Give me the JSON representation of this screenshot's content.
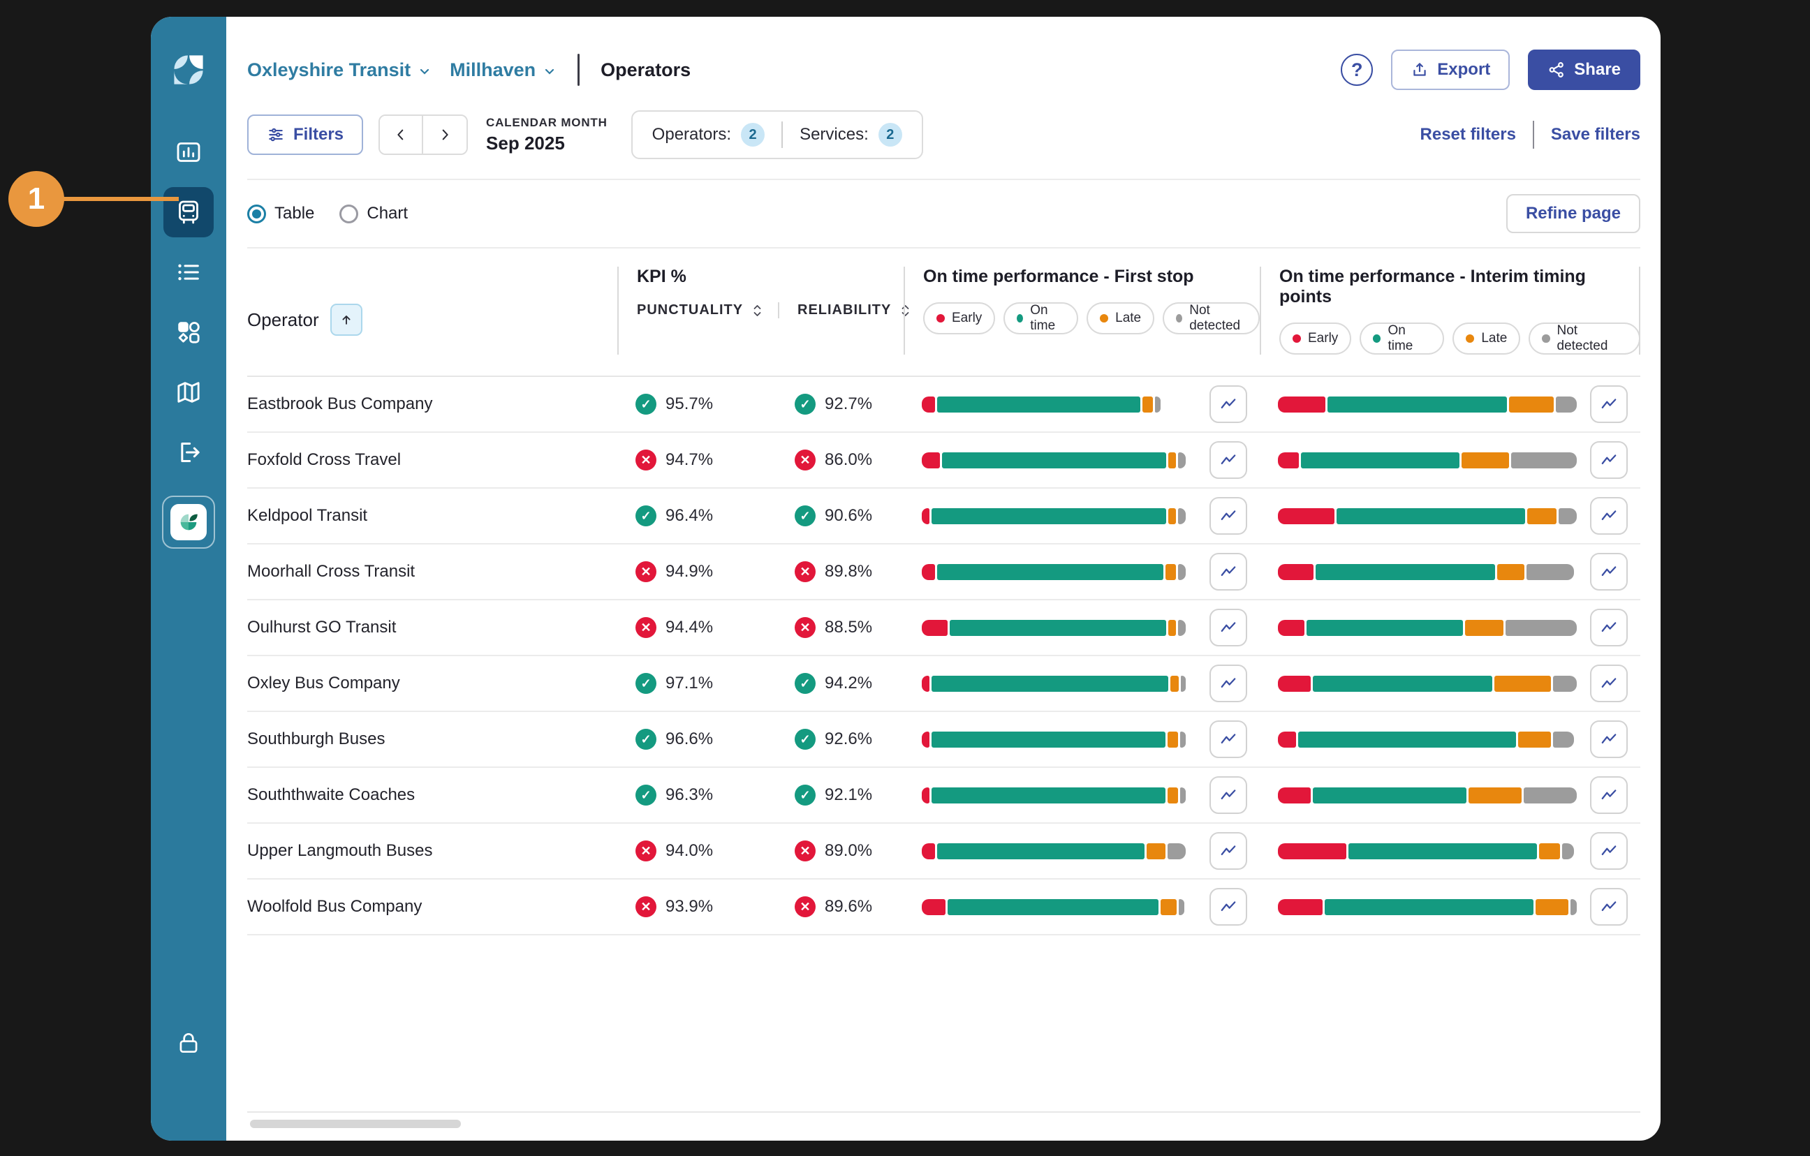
{
  "callout": {
    "number": "1"
  },
  "sidebar": {
    "icons": [
      "logo",
      "bar-chart",
      "bus",
      "list",
      "shapes",
      "map",
      "logout",
      "app-badge",
      "lock"
    ],
    "active_icon": "bus",
    "color": "#2b7a9d"
  },
  "header": {
    "breadcrumb": {
      "org": "Oxleyshire Transit",
      "region": "Millhaven"
    },
    "page_title": "Operators",
    "export_label": "Export",
    "share_label": "Share"
  },
  "filter_bar": {
    "filters_label": "Filters",
    "calendar_month_label": "CALENDAR MONTH",
    "calendar_month_value": "Sep 2025",
    "operators_label": "Operators:",
    "operators_count": "2",
    "services_label": "Services:",
    "services_count": "2",
    "reset_label": "Reset filters",
    "save_label": "Save filters"
  },
  "view_toggle": {
    "table_label": "Table",
    "chart_label": "Chart",
    "selected": "Table",
    "refine_label": "Refine page"
  },
  "table": {
    "operator_header": "Operator",
    "kpi_header": "KPI %",
    "punctuality_header": "PUNCTUALITY",
    "reliability_header": "RELIABILITY",
    "otp_first_header": "On time performance - First stop",
    "otp_interim_header": "On time performance - Interim timing points",
    "pass_icon": "✓",
    "fail_icon": "✕",
    "legend": [
      {
        "label": "Early",
        "color": "#e2173a"
      },
      {
        "label": "On time",
        "color": "#149a80"
      },
      {
        "label": "Late",
        "color": "#e8870e"
      },
      {
        "label": "Not detected",
        "color": "#9c9c9c"
      }
    ],
    "rows": [
      {
        "operator": "Eastbrook Bus Company",
        "punctuality": "95.7%",
        "punctuality_pass": true,
        "reliability": "92.7%",
        "reliability_pass": true,
        "first_stop": [
          5,
          77,
          4,
          2
        ],
        "interim": [
          16,
          60,
          15,
          7
        ]
      },
      {
        "operator": "Foxfold Cross Travel",
        "punctuality": "94.7%",
        "punctuality_pass": false,
        "reliability": "86.0%",
        "reliability_pass": false,
        "first_stop": [
          7,
          86,
          3,
          3
        ],
        "interim": [
          7,
          53,
          16,
          22
        ]
      },
      {
        "operator": "Keldpool Transit",
        "punctuality": "96.4%",
        "punctuality_pass": true,
        "reliability": "90.6%",
        "reliability_pass": true,
        "first_stop": [
          3,
          91,
          3,
          3
        ],
        "interim": [
          19,
          63,
          10,
          6
        ]
      },
      {
        "operator": "Moorhall Cross Transit",
        "punctuality": "94.9%",
        "punctuality_pass": false,
        "reliability": "89.8%",
        "reliability_pass": false,
        "first_stop": [
          5,
          87,
          4,
          3
        ],
        "interim": [
          12,
          60,
          9,
          16
        ]
      },
      {
        "operator": "Oulhurst GO Transit",
        "punctuality": "94.4%",
        "punctuality_pass": false,
        "reliability": "88.5%",
        "reliability_pass": false,
        "first_stop": [
          10,
          84,
          3,
          3
        ],
        "interim": [
          9,
          53,
          13,
          24
        ]
      },
      {
        "operator": "Oxley Bus Company",
        "punctuality": "97.1%",
        "punctuality_pass": true,
        "reliability": "94.2%",
        "reliability_pass": true,
        "first_stop": [
          3,
          91,
          3,
          2
        ],
        "interim": [
          11,
          60,
          19,
          8
        ]
      },
      {
        "operator": "Southburgh Buses",
        "punctuality": "96.6%",
        "punctuality_pass": true,
        "reliability": "92.6%",
        "reliability_pass": true,
        "first_stop": [
          3,
          89,
          4,
          2
        ],
        "interim": [
          6,
          73,
          11,
          7
        ]
      },
      {
        "operator": "Souththwaite Coaches",
        "punctuality": "96.3%",
        "punctuality_pass": true,
        "reliability": "92.1%",
        "reliability_pass": true,
        "first_stop": [
          3,
          89,
          4,
          2
        ],
        "interim": [
          11,
          52,
          18,
          18
        ]
      },
      {
        "operator": "Upper Langmouth Buses",
        "punctuality": "94.0%",
        "punctuality_pass": false,
        "reliability": "89.0%",
        "reliability_pass": false,
        "first_stop": [
          5,
          79,
          7,
          7
        ],
        "interim": [
          23,
          63,
          7,
          4
        ]
      },
      {
        "operator": "Woolfold Bus Company",
        "punctuality": "93.9%",
        "punctuality_pass": false,
        "reliability": "89.6%",
        "reliability_pass": false,
        "first_stop": [
          9,
          80,
          6,
          2
        ],
        "interim": [
          15,
          70,
          11,
          2
        ]
      }
    ]
  },
  "colors": {
    "segments": [
      "#e2173a",
      "#149a80",
      "#e8870e",
      "#9c9c9c"
    ],
    "accent_blue": "#3a4ea3",
    "breadcrumb_blue": "#2f7ca2",
    "sidebar": "#2b7a9d",
    "sidebar_active": "#11486b",
    "callout_orange": "#e9973e",
    "pass_green": "#149a80",
    "fail_red": "#e2173a"
  }
}
